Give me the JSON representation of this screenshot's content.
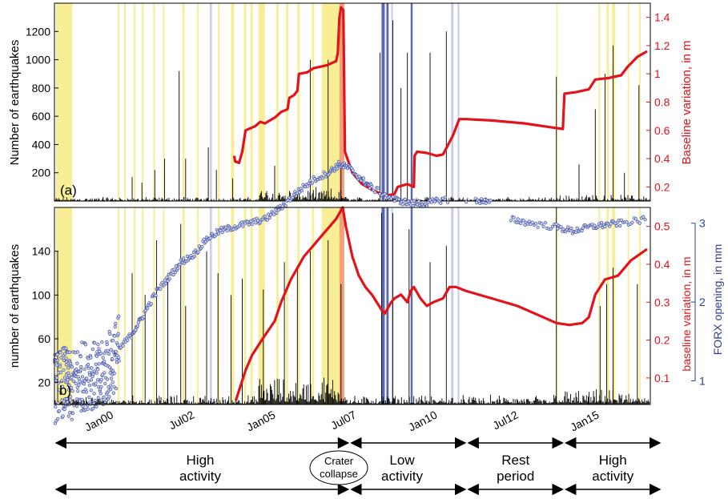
{
  "chart_data": [
    {
      "type": "line",
      "panel_label": "(a)",
      "ylabel": "Number of earthquakes",
      "y2label": "Baseline variation, in m",
      "xlim": [
        1998.5,
        2016.9
      ],
      "ylim": [
        0,
        1400
      ],
      "y2lim": [
        0.1,
        1.5
      ],
      "yticks": [
        200,
        400,
        600,
        800,
        1000,
        1200
      ],
      "y2ticks": [
        0.2,
        0.4,
        0.6,
        0.8,
        1,
        1.2,
        1.4
      ],
      "series": [
        {
          "role": "baseline_variation_m",
          "color": "#e3131b",
          "points": [
            [
              2004.05,
              0.42
            ],
            [
              2004.08,
              0.38
            ],
            [
              2004.2,
              0.37
            ],
            [
              2004.3,
              0.45
            ],
            [
              2004.4,
              0.6
            ],
            [
              2004.7,
              0.63
            ],
            [
              2004.85,
              0.66
            ],
            [
              2005.0,
              0.65
            ],
            [
              2005.3,
              0.69
            ],
            [
              2005.5,
              0.73
            ],
            [
              2005.7,
              0.75
            ],
            [
              2005.75,
              0.83
            ],
            [
              2005.9,
              0.85
            ],
            [
              2006.0,
              0.88
            ],
            [
              2006.05,
              1.0
            ],
            [
              2006.3,
              1.01
            ],
            [
              2006.5,
              1.04
            ],
            [
              2006.9,
              1.06
            ],
            [
              2007.2,
              1.09
            ],
            [
              2007.25,
              1.15
            ],
            [
              2007.3,
              1.4
            ],
            [
              2007.35,
              1.47
            ],
            [
              2007.42,
              1.45
            ],
            [
              2007.47,
              0.45
            ],
            [
              2007.7,
              0.3
            ],
            [
              2008.0,
              0.22
            ],
            [
              2008.3,
              0.18
            ],
            [
              2008.6,
              0.15
            ],
            [
              2008.8,
              0.14
            ],
            [
              2009.0,
              0.15
            ],
            [
              2009.1,
              0.2
            ],
            [
              2009.4,
              0.22
            ],
            [
              2009.6,
              0.2
            ],
            [
              2009.62,
              0.42
            ],
            [
              2009.7,
              0.45
            ],
            [
              2010.0,
              0.44
            ],
            [
              2010.3,
              0.42
            ],
            [
              2010.5,
              0.43
            ],
            [
              2010.8,
              0.56
            ],
            [
              2011.0,
              0.68
            ],
            [
              2011.2,
              0.68
            ],
            [
              2012.0,
              0.67
            ],
            [
              2013.0,
              0.65
            ],
            [
              2013.9,
              0.62
            ],
            [
              2014.2,
              0.61
            ],
            [
              2014.25,
              0.86
            ],
            [
              2014.6,
              0.87
            ],
            [
              2015.0,
              0.89
            ],
            [
              2015.2,
              0.96
            ],
            [
              2015.6,
              0.97
            ],
            [
              2016.0,
              0.99
            ],
            [
              2016.2,
              1.05
            ],
            [
              2016.5,
              1.12
            ],
            [
              2016.8,
              1.16
            ]
          ]
        }
      ]
    },
    {
      "type": "line",
      "panel_label": "b)",
      "ylabel": "number of earthquakes",
      "y2label": "baseline variation, in m",
      "y3label": "FORX opening, in mm",
      "xlim": [
        1998.5,
        2016.9
      ],
      "ylim": [
        0,
        180
      ],
      "y2lim": [
        0.03,
        0.55
      ],
      "y3lim": [
        0.7,
        3.2
      ],
      "yticks": [
        20,
        60,
        100,
        140
      ],
      "y2ticks": [
        0.1,
        0.2,
        0.3,
        0.4,
        0.5
      ],
      "y3ticks": [
        1,
        2,
        3
      ],
      "series": [
        {
          "role": "baseline_variation_m",
          "color": "#e3131b",
          "points": [
            [
              2004.1,
              0.04
            ],
            [
              2004.4,
              0.12
            ],
            [
              2004.6,
              0.16
            ],
            [
              2004.9,
              0.2
            ],
            [
              2005.3,
              0.25
            ],
            [
              2005.5,
              0.3
            ],
            [
              2005.8,
              0.36
            ],
            [
              2006.0,
              0.39
            ],
            [
              2006.2,
              0.42
            ],
            [
              2006.5,
              0.45
            ],
            [
              2006.8,
              0.48
            ],
            [
              2007.0,
              0.5
            ],
            [
              2007.2,
              0.52
            ],
            [
              2007.4,
              0.55
            ],
            [
              2007.5,
              0.5
            ],
            [
              2007.7,
              0.42
            ],
            [
              2007.9,
              0.37
            ],
            [
              2008.1,
              0.34
            ],
            [
              2008.3,
              0.32
            ],
            [
              2008.6,
              0.28
            ],
            [
              2008.7,
              0.27
            ],
            [
              2008.9,
              0.3
            ],
            [
              2009.0,
              0.31
            ],
            [
              2009.2,
              0.32
            ],
            [
              2009.4,
              0.3
            ],
            [
              2009.5,
              0.33
            ],
            [
              2009.6,
              0.34
            ],
            [
              2009.8,
              0.31
            ],
            [
              2010.0,
              0.29
            ],
            [
              2010.2,
              0.3
            ],
            [
              2010.5,
              0.31
            ],
            [
              2010.7,
              0.34
            ],
            [
              2010.9,
              0.34
            ],
            [
              2011.2,
              0.33
            ],
            [
              2012.0,
              0.31
            ],
            [
              2012.8,
              0.29
            ],
            [
              2013.6,
              0.26
            ],
            [
              2014.0,
              0.245
            ],
            [
              2014.4,
              0.24
            ],
            [
              2014.8,
              0.245
            ],
            [
              2015.0,
              0.26
            ],
            [
              2015.2,
              0.32
            ],
            [
              2015.5,
              0.36
            ],
            [
              2015.9,
              0.37
            ],
            [
              2016.3,
              0.41
            ],
            [
              2016.8,
              0.44
            ]
          ]
        },
        {
          "role": "forx_opening_mm",
          "color": "#2e3f93",
          "points": [
            [
              1998.5,
              0.9
            ],
            [
              1998.8,
              1.0
            ],
            [
              1999.0,
              0.9
            ],
            [
              1999.3,
              1.05
            ],
            [
              1999.6,
              1.1
            ],
            [
              1999.9,
              1.0
            ],
            [
              2000.2,
              1.2
            ],
            [
              2000.5,
              1.4
            ],
            [
              2000.9,
              1.6
            ],
            [
              2001.2,
              1.8
            ],
            [
              2001.6,
              2.1
            ],
            [
              2002.0,
              2.3
            ],
            [
              2002.4,
              2.5
            ],
            [
              2002.8,
              2.6
            ],
            [
              2003.2,
              2.8
            ],
            [
              2003.6,
              2.9
            ],
            [
              2004.0,
              2.95
            ],
            [
              2004.5,
              3.0
            ],
            [
              2005.0,
              3.05
            ],
            [
              2005.5,
              3.2
            ],
            [
              2006.0,
              3.4
            ],
            [
              2006.5,
              3.55
            ],
            [
              2007.0,
              3.65
            ],
            [
              2007.3,
              3.75
            ],
            [
              2007.6,
              3.7
            ],
            [
              2008.0,
              3.55
            ],
            [
              2008.3,
              3.45
            ],
            [
              2009.0,
              3.3
            ],
            [
              2009.5,
              3.25
            ],
            [
              2010.0,
              3.25
            ],
            [
              2010.5,
              3.3
            ],
            [
              2011.5,
              3.3
            ],
            [
              2012.0,
              3.25
            ],
            [
              2012.6,
              3.05
            ],
            [
              2013.2,
              3.0
            ],
            [
              2014.0,
              2.95
            ],
            [
              2014.5,
              2.9
            ],
            [
              2015.0,
              2.95
            ],
            [
              2015.5,
              2.98
            ],
            [
              2016.0,
              3.0
            ],
            [
              2016.8,
              3.05
            ]
          ]
        }
      ]
    }
  ],
  "x_tick_labels": [
    {
      "label": "Jan00",
      "x": 2000.0
    },
    {
      "label": "Jul02",
      "x": 2002.5
    },
    {
      "label": "Jan05",
      "x": 2005.0
    },
    {
      "label": "Jul07",
      "x": 2007.5
    },
    {
      "label": "Jan10",
      "x": 2010.0
    },
    {
      "label": "Jul12",
      "x": 2012.5
    },
    {
      "label": "Jan15",
      "x": 2015.0
    }
  ],
  "periods": [
    {
      "label_line1": "High",
      "label_line2": "activity",
      "start": 1998.5,
      "end": 2007.45
    },
    {
      "label_line1": "Low",
      "label_line2": "activity",
      "start": 2007.45,
      "end": 2011.0
    },
    {
      "label_line1": "Rest",
      "label_line2": "period",
      "start": 2011.0,
      "end": 2013.95
    },
    {
      "label_line1": "High",
      "label_line2": "activity",
      "start": 2013.95,
      "end": 2016.9
    }
  ],
  "event": {
    "label_line1": "Crater",
    "label_line2": "collapse",
    "x": 2007.45
  },
  "colors": {
    "earthquakes": "#000000",
    "baseline": "#e3131b",
    "forx": "#2e3f93",
    "eruption_band": "#f5ea7a",
    "low_activity_band": "#3d4f9c",
    "light_band": "#b7bfe0",
    "collapse_band": "#f08a55"
  }
}
